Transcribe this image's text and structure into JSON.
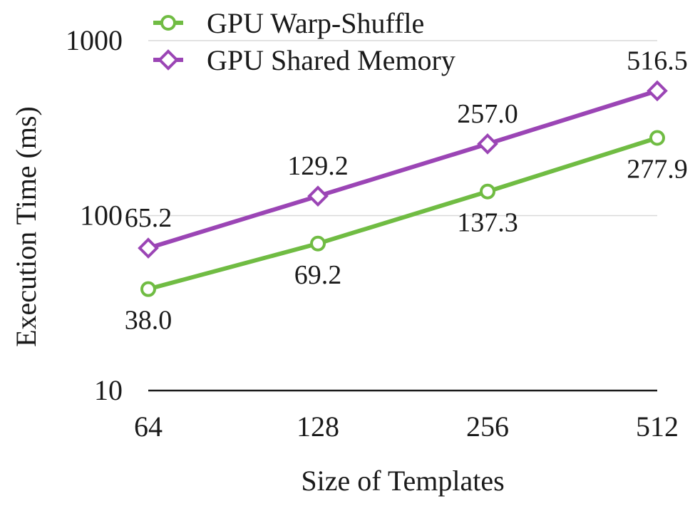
{
  "chart_data": {
    "type": "line",
    "title": "",
    "xlabel": "Size of Templates",
    "ylabel": "Execution Time (ms)",
    "categories": [
      "64",
      "128",
      "256",
      "512"
    ],
    "y_scale": "log",
    "ylim": [
      10,
      1000
    ],
    "y_ticks": [
      {
        "value": 10,
        "label": "10"
      },
      {
        "value": 100,
        "label": "100"
      },
      {
        "value": 1000,
        "label": "1000"
      }
    ],
    "grid": "horizontal",
    "legend_position": "top-left",
    "series": [
      {
        "name": "GPU Warp-Shuffle",
        "color": "#70bc43",
        "marker": "circle",
        "values": [
          38.0,
          69.2,
          137.3,
          277.9
        ],
        "labels": [
          "38.0",
          "69.2",
          "137.3",
          "277.9"
        ],
        "label_position": [
          "below",
          "below",
          "below",
          "below"
        ]
      },
      {
        "name": "GPU Shared Memory",
        "color": "#9b45b5",
        "marker": "diamond",
        "values": [
          65.2,
          129.2,
          257.0,
          516.5
        ],
        "labels": [
          "65.2",
          "129.2",
          "257.0",
          "516.5"
        ],
        "label_position": [
          "above",
          "above",
          "above",
          "above"
        ]
      }
    ]
  }
}
